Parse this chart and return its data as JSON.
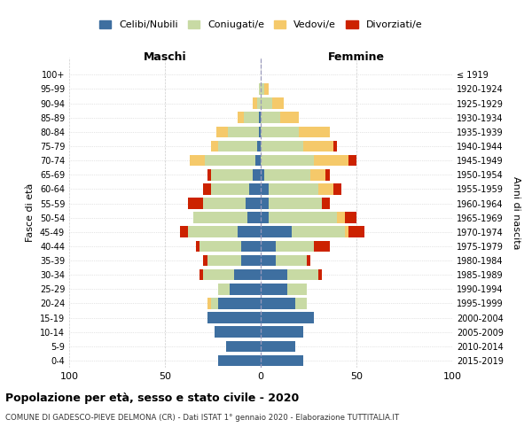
{
  "age_groups": [
    "0-4",
    "5-9",
    "10-14",
    "15-19",
    "20-24",
    "25-29",
    "30-34",
    "35-39",
    "40-44",
    "45-49",
    "50-54",
    "55-59",
    "60-64",
    "65-69",
    "70-74",
    "75-79",
    "80-84",
    "85-89",
    "90-94",
    "95-99",
    "100+"
  ],
  "birth_years": [
    "2015-2019",
    "2010-2014",
    "2005-2009",
    "2000-2004",
    "1995-1999",
    "1990-1994",
    "1985-1989",
    "1980-1984",
    "1975-1979",
    "1970-1974",
    "1965-1969",
    "1960-1964",
    "1955-1959",
    "1950-1954",
    "1945-1949",
    "1940-1944",
    "1935-1939",
    "1930-1934",
    "1925-1929",
    "1920-1924",
    "≤ 1919"
  ],
  "colors": {
    "celibi": "#3e6fa0",
    "coniugati": "#c8daa4",
    "vedovi": "#f5c96a",
    "divorziati": "#cc2200"
  },
  "males": {
    "celibi": [
      22,
      18,
      24,
      28,
      22,
      16,
      14,
      10,
      10,
      12,
      7,
      8,
      6,
      4,
      3,
      2,
      1,
      1,
      0,
      0,
      0
    ],
    "coniugati": [
      0,
      0,
      0,
      0,
      4,
      6,
      16,
      18,
      22,
      26,
      28,
      22,
      20,
      22,
      26,
      20,
      16,
      8,
      2,
      1,
      0
    ],
    "vedovi": [
      0,
      0,
      0,
      0,
      2,
      0,
      0,
      0,
      0,
      0,
      0,
      0,
      0,
      0,
      8,
      4,
      6,
      3,
      2,
      0,
      0
    ],
    "divorziati": [
      0,
      0,
      0,
      0,
      0,
      0,
      2,
      2,
      2,
      4,
      0,
      8,
      4,
      2,
      0,
      0,
      0,
      0,
      0,
      0,
      0
    ]
  },
  "females": {
    "celibi": [
      22,
      18,
      22,
      28,
      18,
      14,
      14,
      8,
      8,
      16,
      4,
      4,
      4,
      2,
      0,
      0,
      0,
      0,
      0,
      0,
      0
    ],
    "coniugati": [
      0,
      0,
      0,
      0,
      6,
      10,
      16,
      16,
      20,
      28,
      36,
      28,
      26,
      24,
      28,
      22,
      20,
      10,
      6,
      2,
      0
    ],
    "vedovi": [
      0,
      0,
      0,
      0,
      0,
      0,
      0,
      0,
      0,
      2,
      4,
      0,
      8,
      8,
      18,
      16,
      16,
      10,
      6,
      2,
      0
    ],
    "divorziati": [
      0,
      0,
      0,
      0,
      0,
      0,
      2,
      2,
      8,
      8,
      6,
      4,
      4,
      2,
      4,
      2,
      0,
      0,
      0,
      0,
      0
    ]
  },
  "title": "Popolazione per età, sesso e stato civile - 2020",
  "subtitle": "COMUNE DI GADESCO-PIEVE DELMONA (CR) - Dati ISTAT 1° gennaio 2020 - Elaborazione TUTTITALIA.IT",
  "xlim": [
    -100,
    100
  ],
  "xticks": [
    -100,
    -50,
    0,
    50,
    100
  ],
  "xticklabels": [
    "100",
    "50",
    "0",
    "50",
    "100"
  ],
  "maschi_label": "Maschi",
  "femmine_label": "Femmine",
  "fascia_label": "Fasce di età",
  "anni_label": "Anni di nascita",
  "legend_labels": [
    "Celibi/Nubili",
    "Coniugati/e",
    "Vedovi/e",
    "Divorziati/e"
  ]
}
